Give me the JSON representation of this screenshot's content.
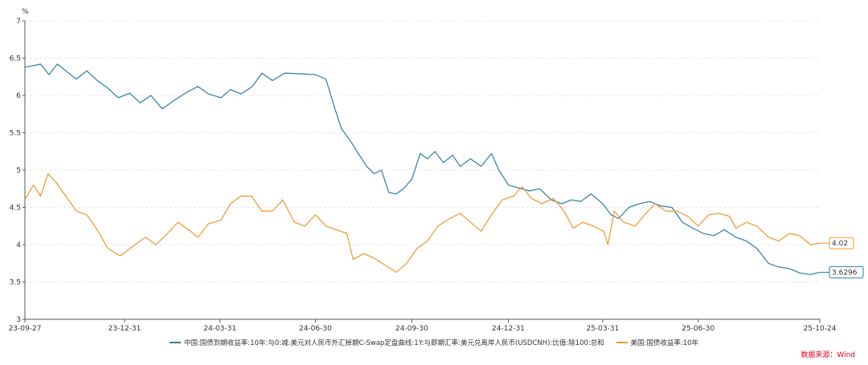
{
  "chart_data": {
    "type": "line",
    "unit": "%",
    "ylim": [
      3,
      7
    ],
    "yticks": [
      "3",
      "3.5",
      "4",
      "4.5",
      "5",
      "5.5",
      "6",
      "6.5",
      "7"
    ],
    "xlim": [
      "2023-09-27",
      "2025-10-24"
    ],
    "xticks": [
      {
        "date": "2023-09-27",
        "label": "23-09-27"
      },
      {
        "date": "2023-12-31",
        "label": "23-12-31"
      },
      {
        "date": "2024-03-31",
        "label": "24-03-31"
      },
      {
        "date": "2024-06-30",
        "label": "24-06-30"
      },
      {
        "date": "2024-09-30",
        "label": "24-09-30"
      },
      {
        "date": "2024-12-31",
        "label": "24-12-31"
      },
      {
        "date": "2025-03-31",
        "label": "25-03-31"
      },
      {
        "date": "2025-06-30",
        "label": "25-06-30"
      },
      {
        "date": "2025-10-24",
        "label": "25-10-24"
      }
    ],
    "grid": true,
    "legend_position": "bottom",
    "series": [
      {
        "name": "中国:国债到期收益率:10年:与0:减:美元对人民币外汇掉期C-Swap定盘曲线:1Y:与即期汇率:美元兑离岸人民币(USDCNH):比值:除100:总和",
        "color": "#2a7ca6",
        "end_label": "3.6296",
        "points": [
          [
            "2023-09-27",
            6.38
          ],
          [
            "2023-10-05",
            6.4
          ],
          [
            "2023-10-12",
            6.42
          ],
          [
            "2023-10-20",
            6.28
          ],
          [
            "2023-10-28",
            6.42
          ],
          [
            "2023-11-05",
            6.33
          ],
          [
            "2023-11-15",
            6.22
          ],
          [
            "2023-11-25",
            6.33
          ],
          [
            "2023-12-05",
            6.2
          ],
          [
            "2023-12-15",
            6.1
          ],
          [
            "2023-12-25",
            5.97
          ],
          [
            "2024-01-05",
            6.03
          ],
          [
            "2024-01-15",
            5.9
          ],
          [
            "2024-01-25",
            6.0
          ],
          [
            "2024-02-05",
            5.82
          ],
          [
            "2024-02-15",
            5.92
          ],
          [
            "2024-02-28",
            6.04
          ],
          [
            "2024-03-10",
            6.12
          ],
          [
            "2024-03-20",
            6.02
          ],
          [
            "2024-04-01",
            5.97
          ],
          [
            "2024-04-10",
            6.08
          ],
          [
            "2024-04-20",
            6.02
          ],
          [
            "2024-05-01",
            6.12
          ],
          [
            "2024-05-10",
            6.3
          ],
          [
            "2024-05-20",
            6.2
          ],
          [
            "2024-06-01",
            6.3
          ],
          [
            "2024-06-15",
            6.29
          ],
          [
            "2024-06-30",
            6.28
          ],
          [
            "2024-07-10",
            6.22
          ],
          [
            "2024-07-18",
            5.85
          ],
          [
            "2024-07-25",
            5.55
          ],
          [
            "2024-08-02",
            5.4
          ],
          [
            "2024-08-10",
            5.22
          ],
          [
            "2024-08-18",
            5.05
          ],
          [
            "2024-08-25",
            4.95
          ],
          [
            "2024-09-01",
            5.0
          ],
          [
            "2024-09-08",
            4.7
          ],
          [
            "2024-09-15",
            4.68
          ],
          [
            "2024-09-22",
            4.75
          ],
          [
            "2024-09-30",
            4.88
          ],
          [
            "2024-10-08",
            5.22
          ],
          [
            "2024-10-15",
            5.15
          ],
          [
            "2024-10-22",
            5.25
          ],
          [
            "2024-10-30",
            5.1
          ],
          [
            "2024-11-08",
            5.2
          ],
          [
            "2024-11-15",
            5.05
          ],
          [
            "2024-11-25",
            5.15
          ],
          [
            "2024-12-05",
            5.05
          ],
          [
            "2024-12-15",
            5.22
          ],
          [
            "2024-12-22",
            5.0
          ],
          [
            "2024-12-31",
            4.8
          ],
          [
            "2025-01-10",
            4.76
          ],
          [
            "2025-01-20",
            4.72
          ],
          [
            "2025-01-30",
            4.75
          ],
          [
            "2025-02-10",
            4.6
          ],
          [
            "2025-02-20",
            4.55
          ],
          [
            "2025-03-01",
            4.6
          ],
          [
            "2025-03-10",
            4.58
          ],
          [
            "2025-03-20",
            4.68
          ],
          [
            "2025-03-31",
            4.55
          ],
          [
            "2025-04-08",
            4.4
          ],
          [
            "2025-04-15",
            4.35
          ],
          [
            "2025-04-25",
            4.5
          ],
          [
            "2025-05-05",
            4.55
          ],
          [
            "2025-05-15",
            4.58
          ],
          [
            "2025-05-25",
            4.52
          ],
          [
            "2025-06-05",
            4.5
          ],
          [
            "2025-06-15",
            4.3
          ],
          [
            "2025-06-25",
            4.22
          ],
          [
            "2025-07-05",
            4.15
          ],
          [
            "2025-07-15",
            4.12
          ],
          [
            "2025-07-25",
            4.2
          ],
          [
            "2025-08-05",
            4.1
          ],
          [
            "2025-08-15",
            4.05
          ],
          [
            "2025-08-25",
            3.95
          ],
          [
            "2025-09-05",
            3.75
          ],
          [
            "2025-09-15",
            3.7
          ],
          [
            "2025-09-25",
            3.68
          ],
          [
            "2025-10-05",
            3.62
          ],
          [
            "2025-10-15",
            3.6
          ],
          [
            "2025-10-24",
            3.63
          ]
        ]
      },
      {
        "name": "美国:国债收益率:10年",
        "color": "#f0962a",
        "end_label": "4.02",
        "points": [
          [
            "2023-09-27",
            4.6
          ],
          [
            "2023-10-05",
            4.8
          ],
          [
            "2023-10-12",
            4.65
          ],
          [
            "2023-10-19",
            4.95
          ],
          [
            "2023-10-26",
            4.85
          ],
          [
            "2023-11-05",
            4.65
          ],
          [
            "2023-11-15",
            4.45
          ],
          [
            "2023-11-25",
            4.4
          ],
          [
            "2023-12-05",
            4.2
          ],
          [
            "2023-12-15",
            3.95
          ],
          [
            "2023-12-27",
            3.85
          ],
          [
            "2024-01-10",
            4.0
          ],
          [
            "2024-01-20",
            4.1
          ],
          [
            "2024-01-30",
            4.0
          ],
          [
            "2024-02-10",
            4.15
          ],
          [
            "2024-02-20",
            4.3
          ],
          [
            "2024-03-01",
            4.2
          ],
          [
            "2024-03-10",
            4.1
          ],
          [
            "2024-03-20",
            4.28
          ],
          [
            "2024-04-01",
            4.33
          ],
          [
            "2024-04-10",
            4.55
          ],
          [
            "2024-04-20",
            4.65
          ],
          [
            "2024-04-30",
            4.65
          ],
          [
            "2024-05-10",
            4.45
          ],
          [
            "2024-05-20",
            4.45
          ],
          [
            "2024-05-30",
            4.6
          ],
          [
            "2024-06-10",
            4.3
          ],
          [
            "2024-06-20",
            4.25
          ],
          [
            "2024-06-30",
            4.4
          ],
          [
            "2024-07-10",
            4.25
          ],
          [
            "2024-07-20",
            4.2
          ],
          [
            "2024-07-30",
            4.15
          ],
          [
            "2024-08-05",
            3.8
          ],
          [
            "2024-08-15",
            3.88
          ],
          [
            "2024-08-25",
            3.82
          ],
          [
            "2024-09-05",
            3.72
          ],
          [
            "2024-09-15",
            3.63
          ],
          [
            "2024-09-25",
            3.75
          ],
          [
            "2024-10-05",
            3.95
          ],
          [
            "2024-10-15",
            4.05
          ],
          [
            "2024-10-25",
            4.25
          ],
          [
            "2024-11-05",
            4.35
          ],
          [
            "2024-11-15",
            4.42
          ],
          [
            "2024-11-25",
            4.3
          ],
          [
            "2024-12-05",
            4.18
          ],
          [
            "2024-12-15",
            4.4
          ],
          [
            "2024-12-25",
            4.6
          ],
          [
            "2025-01-05",
            4.65
          ],
          [
            "2025-01-13",
            4.78
          ],
          [
            "2025-01-22",
            4.62
          ],
          [
            "2025-02-01",
            4.55
          ],
          [
            "2025-02-12",
            4.62
          ],
          [
            "2025-02-22",
            4.45
          ],
          [
            "2025-03-03",
            4.22
          ],
          [
            "2025-03-12",
            4.3
          ],
          [
            "2025-03-22",
            4.25
          ],
          [
            "2025-04-01",
            4.18
          ],
          [
            "2025-04-05",
            4.0
          ],
          [
            "2025-04-11",
            4.45
          ],
          [
            "2025-04-20",
            4.3
          ],
          [
            "2025-05-01",
            4.25
          ],
          [
            "2025-05-10",
            4.4
          ],
          [
            "2025-05-20",
            4.55
          ],
          [
            "2025-05-30",
            4.45
          ],
          [
            "2025-06-10",
            4.45
          ],
          [
            "2025-06-20",
            4.38
          ],
          [
            "2025-06-30",
            4.25
          ],
          [
            "2025-07-10",
            4.4
          ],
          [
            "2025-07-20",
            4.42
          ],
          [
            "2025-07-30",
            4.38
          ],
          [
            "2025-08-05",
            4.22
          ],
          [
            "2025-08-15",
            4.3
          ],
          [
            "2025-08-25",
            4.25
          ],
          [
            "2025-09-05",
            4.1
          ],
          [
            "2025-09-15",
            4.05
          ],
          [
            "2025-09-25",
            4.15
          ],
          [
            "2025-10-05",
            4.12
          ],
          [
            "2025-10-15",
            4.0
          ],
          [
            "2025-10-24",
            4.02
          ]
        ]
      }
    ]
  },
  "source": "数据来源：Wind"
}
